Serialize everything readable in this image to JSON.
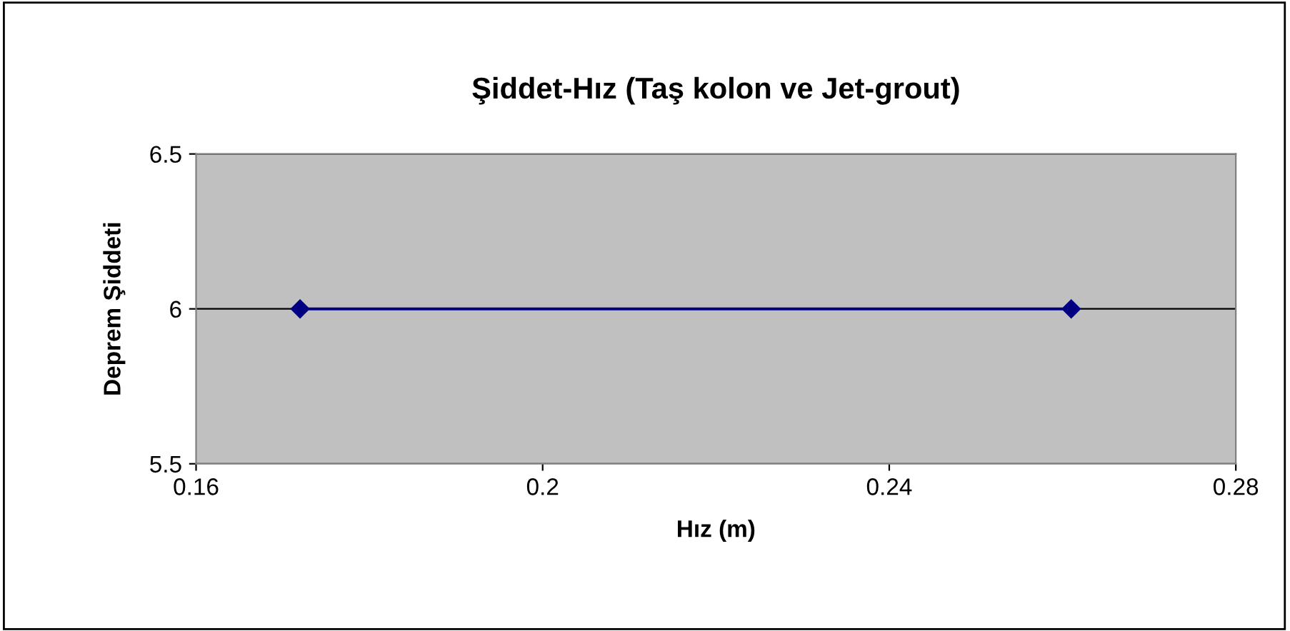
{
  "chart_data": {
    "type": "line",
    "title": "Şiddet-Hız (Taş kolon ve Jet-grout)",
    "xlabel": "Hız (m)",
    "ylabel": "Deprem Şiddeti",
    "x": [
      0.172,
      0.261
    ],
    "series": [
      {
        "color": "#000080",
        "values": [
          6,
          6
        ]
      }
    ],
    "marker": "diamond",
    "line_style": "solid",
    "grid": "y",
    "xlim": [
      0.16,
      0.28
    ],
    "xticks": [
      0.16,
      0.2,
      0.24,
      0.28
    ],
    "ylim": [
      5.5,
      6.5
    ],
    "yticks": [
      5.5,
      6,
      6.5
    ]
  }
}
